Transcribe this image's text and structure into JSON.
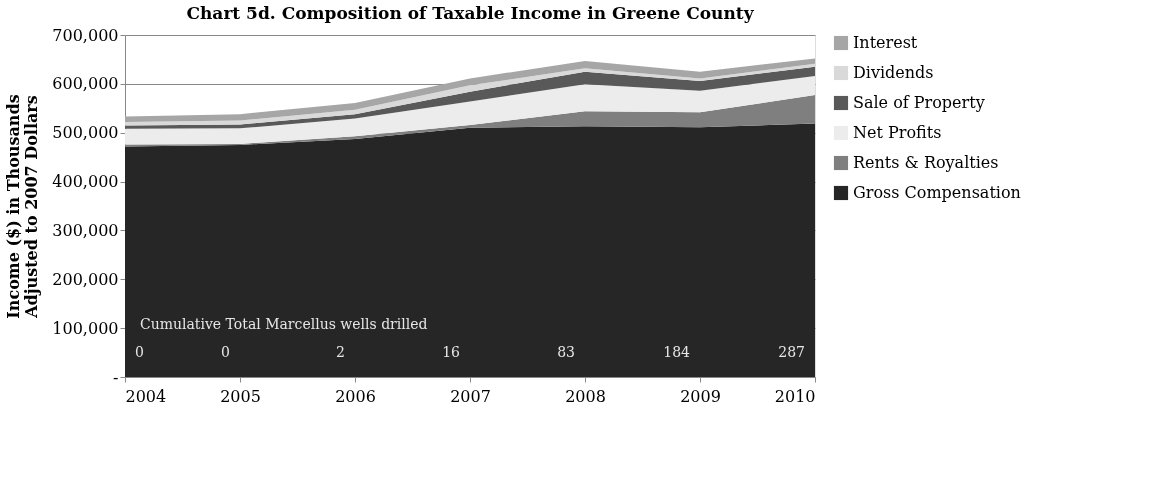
{
  "chart_data": {
    "type": "area",
    "stacked": true,
    "title": "Chart 5d. Composition of Taxable Income in Greene County",
    "ylabel": "Income ($) in Thousands\nAdjusted to 2007 Dollars",
    "x": [
      2004,
      2005,
      2006,
      2007,
      2008,
      2009,
      2010
    ],
    "series": [
      {
        "name": "Gross Compensation",
        "color": "#262626",
        "values": [
          472000,
          475000,
          487000,
          510000,
          513000,
          511000,
          519000
        ]
      },
      {
        "name": "Rents & Royalties",
        "color": "#7f7f7f",
        "values": [
          4000,
          2000,
          6000,
          6000,
          31000,
          31000,
          58000
        ]
      },
      {
        "name": "Net Profits",
        "color": "#ececec",
        "values": [
          32000,
          32000,
          36000,
          48000,
          55000,
          44000,
          39000
        ]
      },
      {
        "name": "Sale of Property",
        "color": "#595959",
        "values": [
          7000,
          8000,
          9000,
          20000,
          26000,
          20000,
          19000
        ]
      },
      {
        "name": "Dividends",
        "color": "#d9d9d9",
        "values": [
          7000,
          8000,
          9000,
          13000,
          7000,
          5000,
          6000
        ]
      },
      {
        "name": "Interest",
        "color": "#a6a6a6",
        "values": [
          11000,
          13000,
          14000,
          14000,
          15000,
          14000,
          11000
        ]
      }
    ],
    "xlim": [
      2004,
      2010
    ],
    "xticks": [
      2004,
      2005,
      2006,
      2007,
      2008,
      2009,
      2010
    ],
    "ylim": [
      0,
      700000
    ],
    "yticks": [
      {
        "value": 0,
        "label": "-"
      },
      {
        "value": 100000,
        "label": "100,000"
      },
      {
        "value": 200000,
        "label": "200,000"
      },
      {
        "value": 300000,
        "label": "300,000"
      },
      {
        "value": 400000,
        "label": "400,000"
      },
      {
        "value": 500000,
        "label": "500,000"
      },
      {
        "value": 600000,
        "label": "600,000"
      },
      {
        "value": 700000,
        "label": "700,000"
      }
    ],
    "grid": "y",
    "legend": "right",
    "annotations": [
      "Cumulative Total Marcellus wells drilled",
      "0",
      "0",
      "2",
      "16",
      "83",
      "184",
      "287"
    ]
  }
}
